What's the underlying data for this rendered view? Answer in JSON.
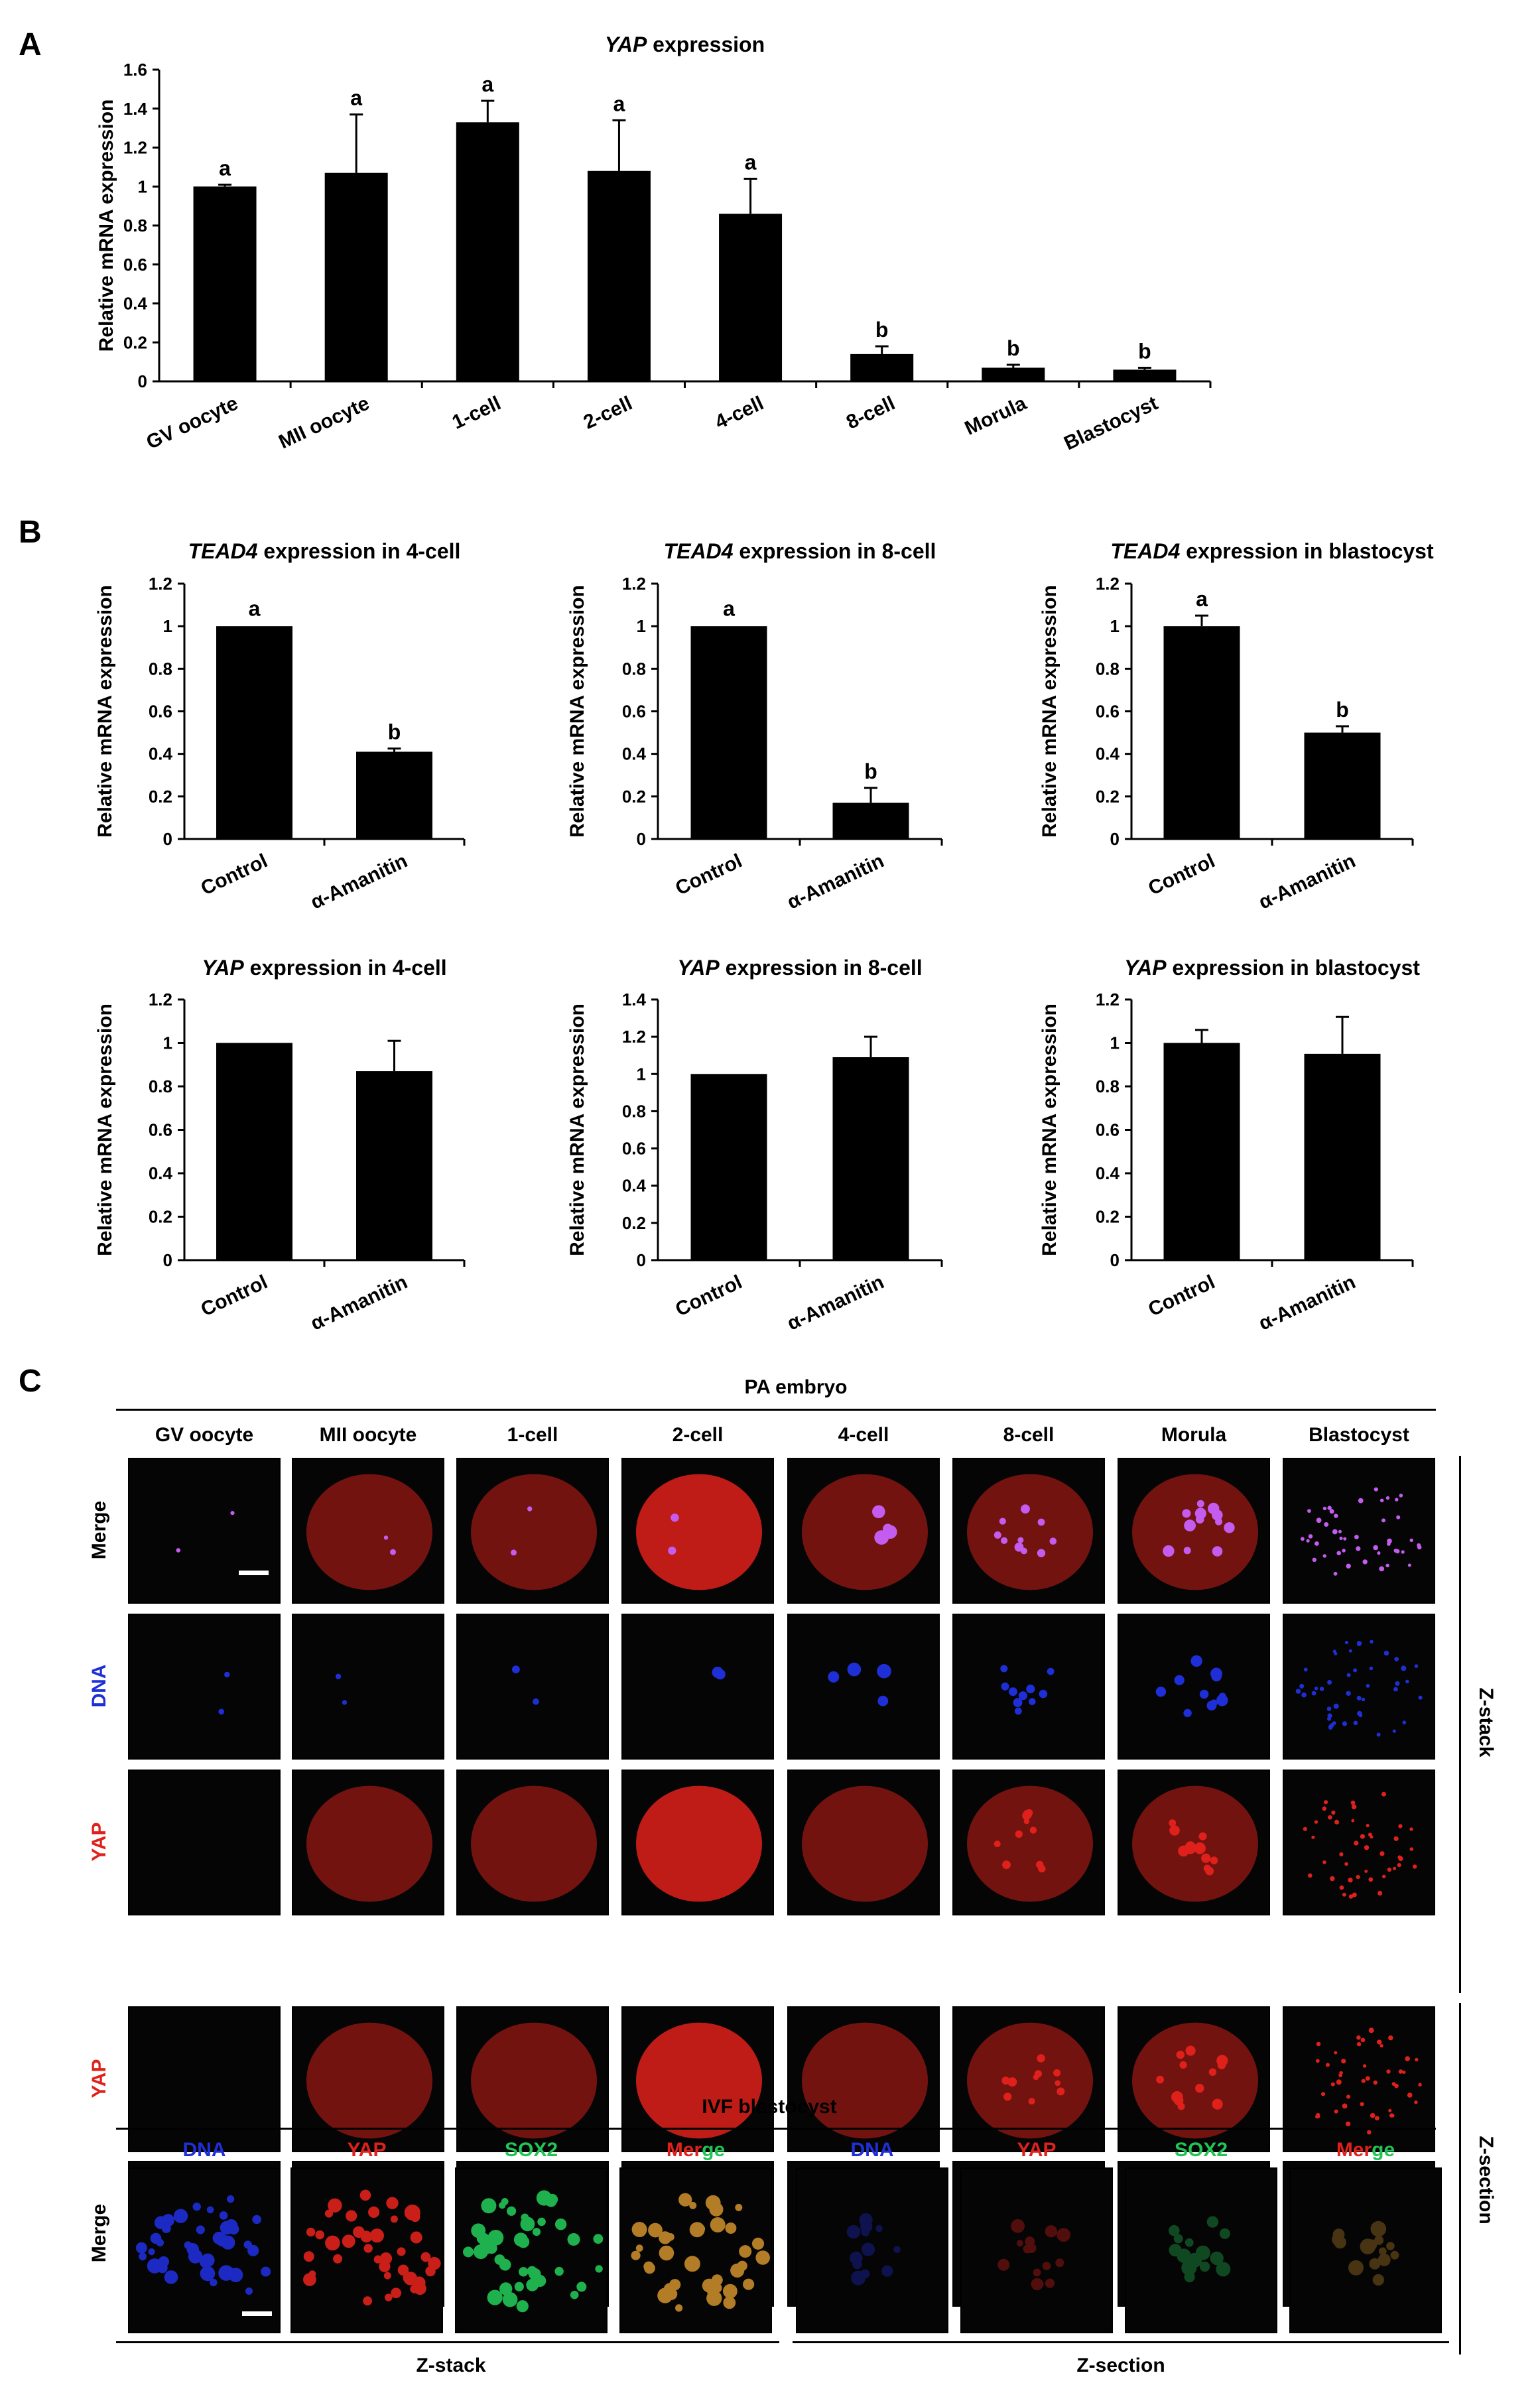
{
  "panels": {
    "A": "A",
    "B": "B",
    "C": "C"
  },
  "charts": [
    {
      "id": "yap-stages",
      "title_italic": "YAP",
      "title_rest": " expression",
      "ylabel": "Relative mRNA expression",
      "ylim": [
        0,
        1.6
      ],
      "yticks": [
        "0",
        "0.2",
        "0.4",
        "0.6",
        "0.8",
        "1",
        "1.2",
        "1.4",
        "1.6"
      ],
      "categories": [
        "GV oocyte",
        "MII oocyte",
        "1-cell",
        "2-cell",
        "4-cell",
        "8-cell",
        "Morula",
        "Blastocyst"
      ],
      "values": [
        1.0,
        1.07,
        1.33,
        1.08,
        0.86,
        0.14,
        0.07,
        0.06
      ],
      "errors": [
        0.01,
        0.3,
        0.11,
        0.26,
        0.18,
        0.04,
        0.015,
        0.01
      ],
      "sig": [
        "a",
        "a",
        "a",
        "a",
        "a",
        "b",
        "b",
        "b"
      ]
    },
    {
      "id": "tead4-4cell",
      "title_italic": "TEAD4",
      "title_rest": " expression in 4-cell",
      "ylabel": "Relative mRNA expression",
      "ylim": [
        0,
        1.2
      ],
      "yticks": [
        "0",
        "0.2",
        "0.4",
        "0.6",
        "0.8",
        "1",
        "1.2"
      ],
      "categories": [
        "Control",
        "α-Amanitin"
      ],
      "values": [
        1.0,
        0.41
      ],
      "errors": [
        0.005,
        0.015
      ],
      "sig": [
        "a",
        "b"
      ]
    },
    {
      "id": "tead4-8cell",
      "title_italic": "TEAD4",
      "title_rest": " expression in 8-cell",
      "ylabel": "Relative mRNA expression",
      "ylim": [
        0,
        1.2
      ],
      "yticks": [
        "0",
        "0.2",
        "0.4",
        "0.6",
        "0.8",
        "1",
        "1.2"
      ],
      "categories": [
        "Control",
        "α-Amanitin"
      ],
      "values": [
        1.0,
        0.17
      ],
      "errors": [
        0.005,
        0.07
      ],
      "sig": [
        "a",
        "b"
      ]
    },
    {
      "id": "tead4-blast",
      "title_italic": "TEAD4",
      "title_rest": " expression in blastocyst",
      "ylabel": "Relative mRNA expression",
      "ylim": [
        0,
        1.2
      ],
      "yticks": [
        "0",
        "0.2",
        "0.4",
        "0.6",
        "0.8",
        "1",
        "1.2"
      ],
      "categories": [
        "Control",
        "α-Amanitin"
      ],
      "values": [
        1.0,
        0.5
      ],
      "errors": [
        0.05,
        0.03
      ],
      "sig": [
        "a",
        "b"
      ]
    },
    {
      "id": "yap-4cell",
      "title_italic": "YAP",
      "title_rest": " expression in 4-cell",
      "ylabel": "Relative mRNA expression",
      "ylim": [
        0,
        1.2
      ],
      "yticks": [
        "0",
        "0.2",
        "0.4",
        "0.6",
        "0.8",
        "1",
        "1.2"
      ],
      "categories": [
        "Control",
        "α-Amanitin"
      ],
      "values": [
        1.0,
        0.87
      ],
      "errors": [
        0.005,
        0.14
      ],
      "sig": [
        "",
        ""
      ]
    },
    {
      "id": "yap-8cell",
      "title_italic": "YAP",
      "title_rest": " expression in 8-cell",
      "ylabel": "Relative mRNA expression",
      "ylim": [
        0,
        1.4
      ],
      "yticks": [
        "0",
        "0.2",
        "0.4",
        "0.6",
        "0.8",
        "1",
        "1.2",
        "1.4"
      ],
      "categories": [
        "Control",
        "α-Amanitin"
      ],
      "values": [
        1.0,
        1.09
      ],
      "errors": [
        0.005,
        0.11
      ],
      "sig": [
        "",
        ""
      ]
    },
    {
      "id": "yap-blast",
      "title_italic": "YAP",
      "title_rest": " expression in blastocyst",
      "ylabel": "Relative mRNA expression",
      "ylim": [
        0,
        1.2
      ],
      "yticks": [
        "0",
        "0.2",
        "0.4",
        "0.6",
        "0.8",
        "1",
        "1.2"
      ],
      "categories": [
        "Control",
        "α-Amanitin"
      ],
      "values": [
        1.0,
        0.95
      ],
      "errors": [
        0.06,
        0.17
      ],
      "sig": [
        "",
        ""
      ]
    }
  ],
  "panelC": {
    "title": "PA embryo",
    "stages": [
      "GV oocyte",
      "MII oocyte",
      "1-cell",
      "2-cell",
      "4-cell",
      "8-cell",
      "Morula",
      "Blastocyst"
    ],
    "rows": [
      "Merge",
      "DNA",
      "YAP",
      "YAP",
      "Merge"
    ],
    "zstack": "Z-stack",
    "zsection": "Z-section",
    "ivf_title": "IVF blastocyst",
    "ivf_labels": [
      "DNA",
      "YAP",
      "SOX2",
      "Mer",
      "ge",
      "DNA",
      "YAP",
      "SOX2",
      "Mer",
      "ge"
    ],
    "ivf_zstack": "Z-stack",
    "ivf_zsection": "Z-section",
    "colors": {
      "dna": "#1f2fd8",
      "yap": "#e0211b",
      "sox2": "#22c455"
    }
  }
}
